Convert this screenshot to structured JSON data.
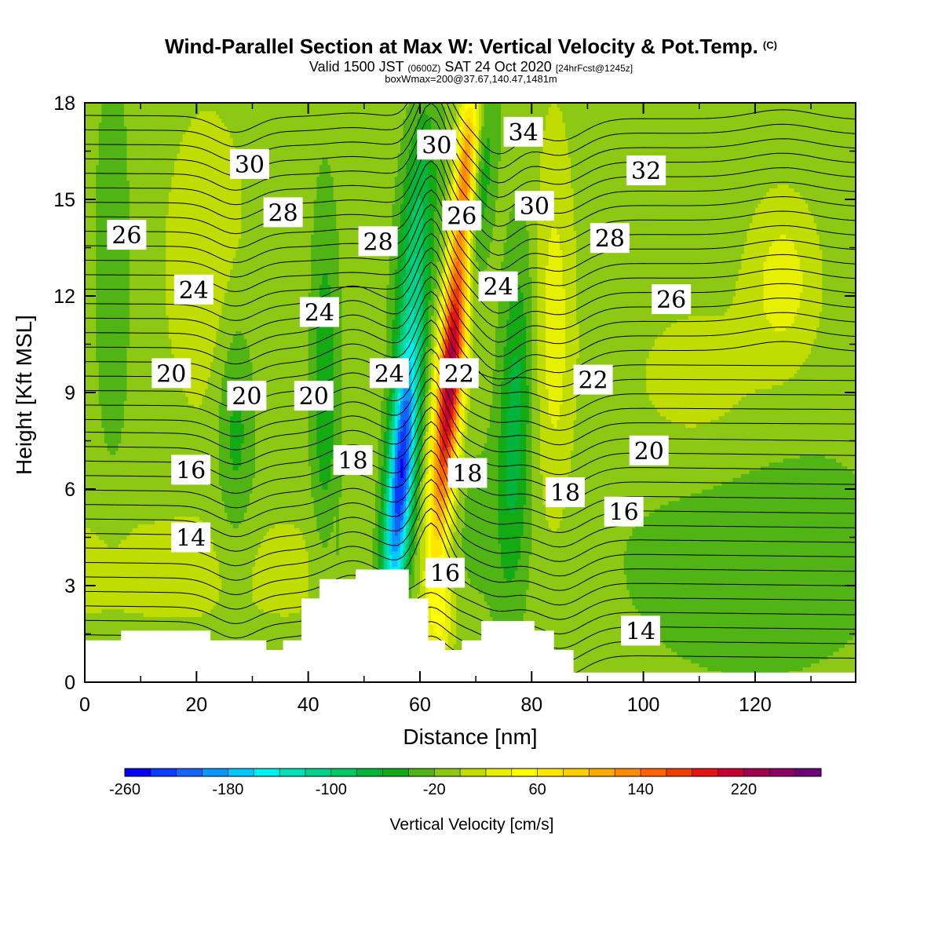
{
  "header": {
    "title": "Wind-Parallel Section at Max W: Vertical Velocity & Pot.Temp.",
    "copyright": "(C)",
    "valid_a": "Valid 1500 JST",
    "valid_utc": "(0600Z)",
    "valid_b": "SAT 24 Oct 2020",
    "forecast": "[24hrFcst@1245z]",
    "box": "boxWmax=200@37.67,140.47,1481m"
  },
  "chart_data": {
    "type": "heatmap",
    "xlabel": "Distance [nm]",
    "ylabel": "Height [Kft MSL]",
    "xlim": [
      0,
      138
    ],
    "ylim": [
      0,
      18
    ],
    "x_ticks": [
      0,
      20,
      40,
      60,
      80,
      100,
      120
    ],
    "y_ticks": [
      0,
      3,
      6,
      9,
      12,
      15,
      18
    ],
    "colorbar": {
      "label": "Vertical Velocity [cm/s]",
      "range": [
        -260,
        260
      ],
      "step": 20,
      "tick_values": [
        -260,
        -180,
        -100,
        -20,
        60,
        140,
        220
      ],
      "colors": [
        "#0000f0",
        "#0a3cff",
        "#1464ff",
        "#0a96ff",
        "#00c8ff",
        "#00f0f0",
        "#00e0b4",
        "#00d28c",
        "#00c864",
        "#00b43c",
        "#14aa14",
        "#50b414",
        "#8cc814",
        "#c0dc00",
        "#e6f000",
        "#ffff00",
        "#ffe600",
        "#ffcd00",
        "#ffaa00",
        "#ff8c00",
        "#ff6400",
        "#f03c00",
        "#e61414",
        "#c80032",
        "#a00050",
        "#8c0064",
        "#6e0078"
      ]
    },
    "theta_contours": {
      "units": "potential temperature",
      "labels": [
        {
          "value": "34",
          "x": 78.5,
          "y": 17.1
        },
        {
          "value": "30",
          "x": 29.5,
          "y": 16.1
        },
        {
          "value": "30",
          "x": 63.0,
          "y": 16.7
        },
        {
          "value": "30",
          "x": 80.5,
          "y": 14.8
        },
        {
          "value": "32",
          "x": 100.5,
          "y": 15.9
        },
        {
          "value": "28",
          "x": 35.5,
          "y": 14.6
        },
        {
          "value": "28",
          "x": 52.5,
          "y": 13.7
        },
        {
          "value": "28",
          "x": 94.0,
          "y": 13.8
        },
        {
          "value": "26",
          "x": 7.5,
          "y": 13.9
        },
        {
          "value": "26",
          "x": 67.5,
          "y": 14.5
        },
        {
          "value": "26",
          "x": 105.0,
          "y": 11.9
        },
        {
          "value": "24",
          "x": 19.5,
          "y": 12.2
        },
        {
          "value": "24",
          "x": 42.0,
          "y": 11.5
        },
        {
          "value": "24",
          "x": 74.0,
          "y": 12.3
        },
        {
          "value": "24",
          "x": 54.5,
          "y": 9.6
        },
        {
          "value": "22",
          "x": 67.0,
          "y": 9.6
        },
        {
          "value": "22",
          "x": 91.0,
          "y": 9.4
        },
        {
          "value": "20",
          "x": 15.5,
          "y": 9.6
        },
        {
          "value": "20",
          "x": 29.0,
          "y": 8.9
        },
        {
          "value": "20",
          "x": 41.0,
          "y": 8.9
        },
        {
          "value": "20",
          "x": 101.0,
          "y": 7.2
        },
        {
          "value": "18",
          "x": 48.0,
          "y": 6.9
        },
        {
          "value": "18",
          "x": 68.5,
          "y": 6.5
        },
        {
          "value": "18",
          "x": 86.0,
          "y": 5.9
        },
        {
          "value": "16",
          "x": 19.0,
          "y": 6.6
        },
        {
          "value": "16",
          "x": 96.5,
          "y": 5.3
        },
        {
          "value": "16",
          "x": 64.5,
          "y": 3.4
        },
        {
          "value": "14",
          "x": 19.0,
          "y": 4.5
        },
        {
          "value": "14",
          "x": 99.5,
          "y": 1.6
        }
      ]
    },
    "terrain_kft": [
      [
        0,
        1.3
      ],
      [
        6.5,
        1.3
      ],
      [
        6.5,
        1.6
      ],
      [
        22.5,
        1.6
      ],
      [
        22.5,
        1.3
      ],
      [
        32.5,
        1.3
      ],
      [
        32.5,
        1.0
      ],
      [
        35.5,
        1.0
      ],
      [
        35.5,
        1.3
      ],
      [
        38.8,
        1.3
      ],
      [
        38.8,
        2.6
      ],
      [
        42,
        2.6
      ],
      [
        42,
        3.2
      ],
      [
        48.5,
        3.2
      ],
      [
        48.5,
        3.5
      ],
      [
        58,
        3.5
      ],
      [
        58,
        2.6
      ],
      [
        61.5,
        2.6
      ],
      [
        61.5,
        1.3
      ],
      [
        64.5,
        1.3
      ],
      [
        64.5,
        1.0
      ],
      [
        67.5,
        1.0
      ],
      [
        67.5,
        1.3
      ],
      [
        71,
        1.3
      ],
      [
        71,
        1.9
      ],
      [
        80.5,
        1.9
      ],
      [
        80.5,
        1.6
      ],
      [
        84,
        1.6
      ],
      [
        84,
        1.0
      ],
      [
        87.5,
        1.0
      ],
      [
        87.5,
        0.3
      ],
      [
        138,
        0.3
      ]
    ]
  }
}
